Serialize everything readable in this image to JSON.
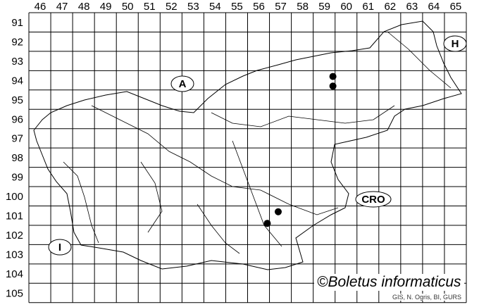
{
  "map": {
    "columns": [
      "46",
      "47",
      "48",
      "49",
      "50",
      "51",
      "52",
      "53",
      "54",
      "55",
      "56",
      "57",
      "58",
      "59",
      "60",
      "61",
      "62",
      "63",
      "64",
      "65"
    ],
    "rows": [
      "91",
      "92",
      "93",
      "94",
      "95",
      "96",
      "97",
      "98",
      "99",
      "100",
      "101",
      "102",
      "103",
      "104",
      "105"
    ],
    "country_labels": [
      {
        "code": "A"
      },
      {
        "code": "H"
      },
      {
        "code": "CRO"
      },
      {
        "code": "I"
      }
    ],
    "occurrences": [
      {
        "col": 59.9,
        "row": 94.3
      },
      {
        "col": 59.9,
        "row": 94.8
      },
      {
        "col": 57.4,
        "row": 101.3
      },
      {
        "col": 56.9,
        "row": 101.9
      }
    ],
    "colors": {
      "grid": "#000000",
      "dot": "#000000",
      "background": "#ffffff"
    }
  },
  "credits": {
    "title": "©Boletus informaticus",
    "source": "GIS, N. Ogris, BI, GURS"
  }
}
